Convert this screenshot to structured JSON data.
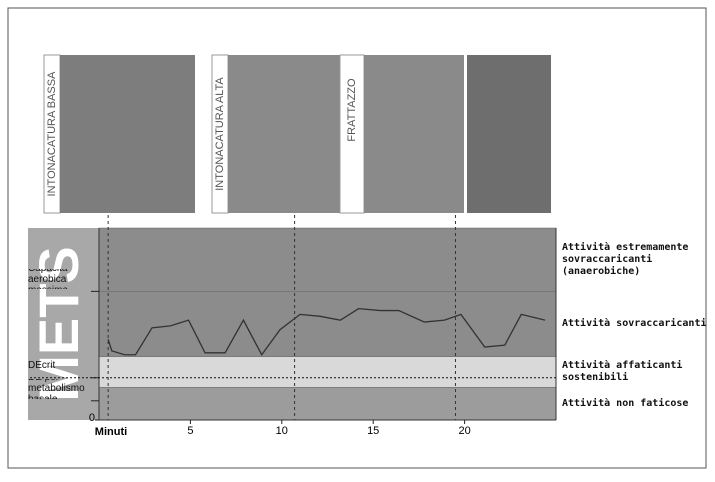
{
  "chart_data": {
    "type": "line",
    "photo_labels": [
      "INTONACATURA BASSA",
      "INTONACATURA ALTA",
      "FRATTAZZO"
    ],
    "y_label": "METS",
    "x_label": "Minuti",
    "x": [
      0.5,
      0.7,
      1.4,
      2.0,
      2.9,
      3.9,
      4.9,
      5.8,
      6.9,
      7.9,
      8.9,
      9.9,
      11.0,
      12.1,
      13.2,
      14.2,
      15.4,
      16.4,
      17.8,
      18.9,
      19.8,
      21.1,
      22.2,
      23.1,
      24.4
    ],
    "series": [
      {
        "color": "#333333",
        "values": [
          4.2,
          3.6,
          3.4,
          3.4,
          4.8,
          4.9,
          5.2,
          3.5,
          3.5,
          5.2,
          3.4,
          4.7,
          5.5,
          5.4,
          5.2,
          5.8,
          5.7,
          5.7,
          5.1,
          5.2,
          5.5,
          3.8,
          3.9,
          5.5,
          5.2
        ]
      }
    ],
    "xlim": [
      0,
      25
    ],
    "xticks": [
      5,
      10,
      15,
      20
    ],
    "ylim": [
      0,
      10
    ],
    "yticks": [
      0
    ],
    "phase_lines": [
      0.5,
      10.7,
      19.5
    ],
    "zones": [
      {
        "name": "Attività estremamente sovraccaricanti (anaerobiche)",
        "from": 6.7,
        "to": 10,
        "color": "#8c8c8c"
      },
      {
        "name": "Attività sovraccaricanti",
        "from": 3.3,
        "to": 6.7,
        "color": "#8c8c8c"
      },
      {
        "name": "Attività affaticanti sostenibili",
        "from": 1.7,
        "to": 3.3,
        "color": "#d9d9d9"
      },
      {
        "name": "Attività non faticose",
        "from": 0,
        "to": 1.7,
        "color": "#9c9c9c"
      }
    ],
    "levels": [
      {
        "label": "Capacita aerobica massima",
        "value": 6.7
      },
      {
        "label": "DEcrit",
        "value": 2.2
      },
      {
        "label": "DE per metabolismo basale",
        "value": 1.0
      }
    ]
  }
}
